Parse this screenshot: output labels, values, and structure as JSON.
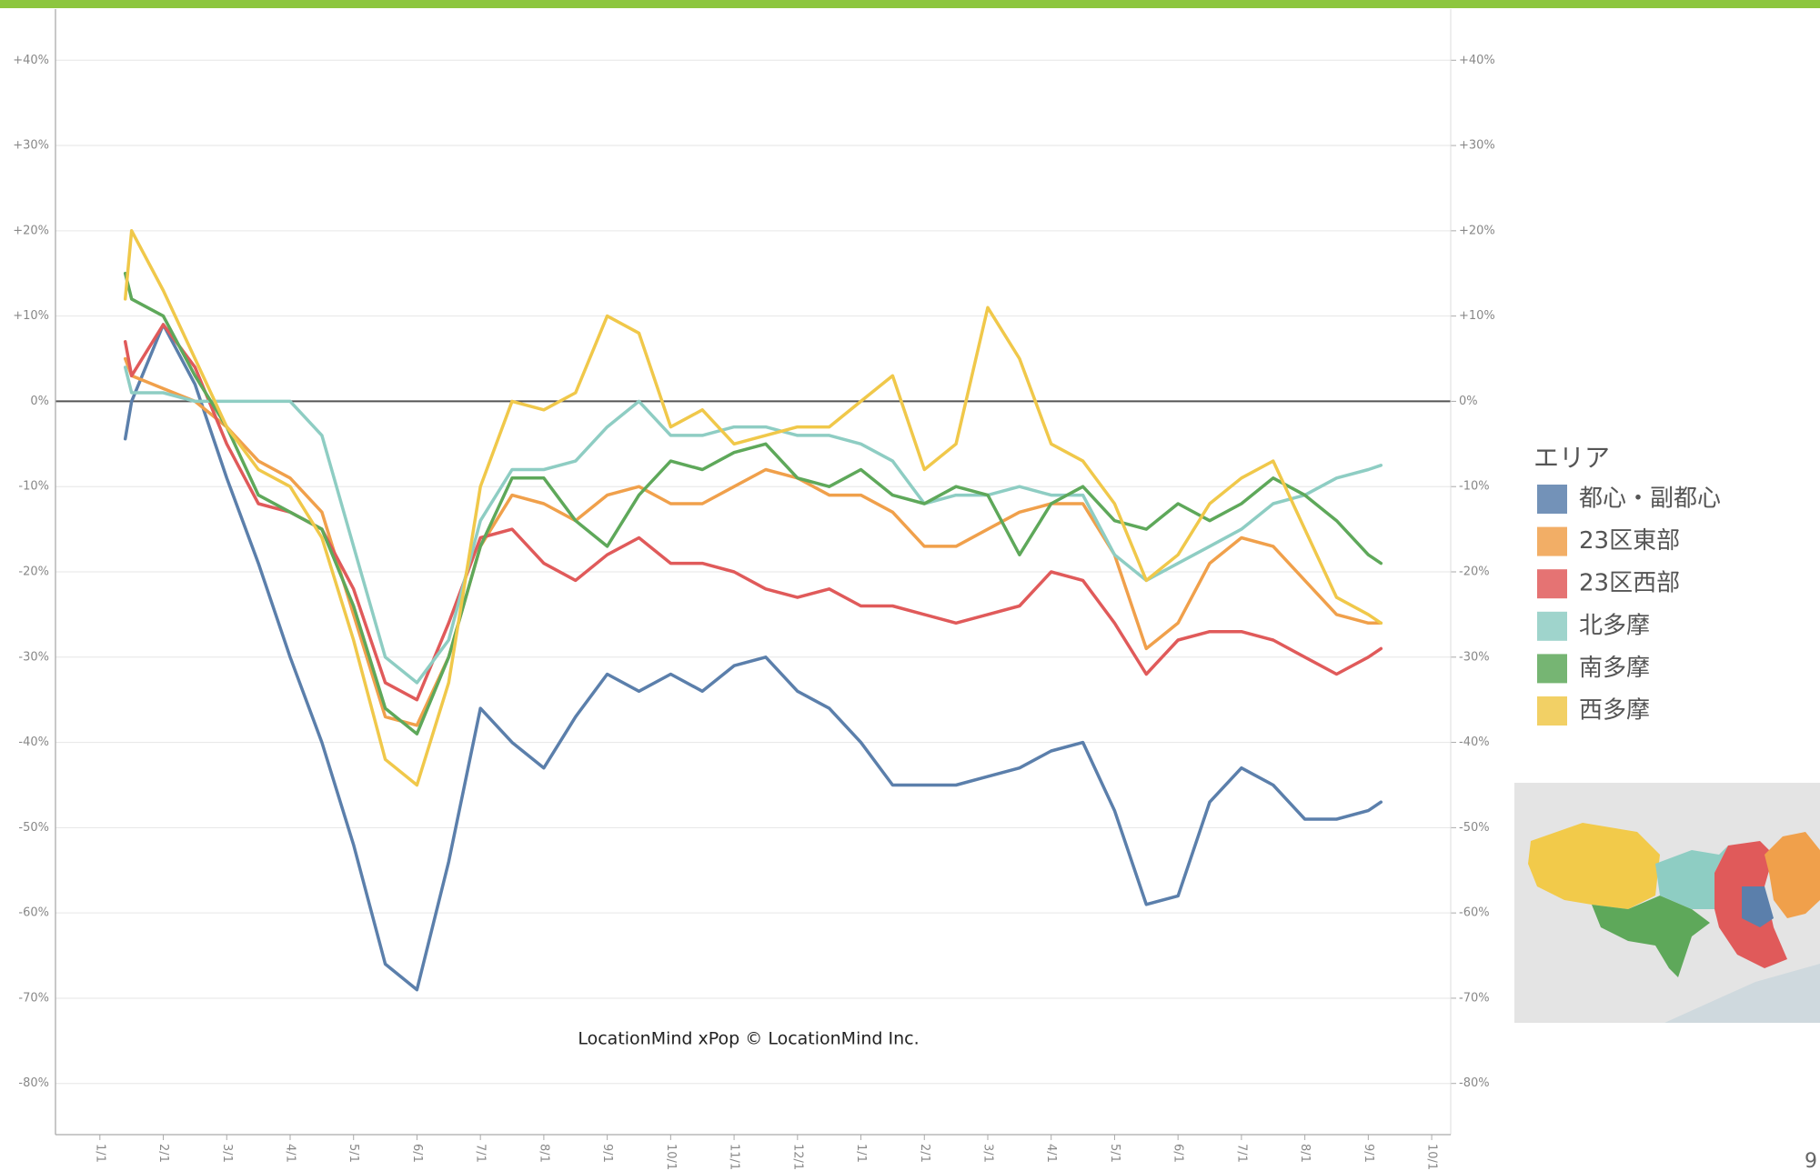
{
  "chart_data": {
    "type": "line",
    "legend_title": "エリア",
    "annotation": "LocationMind xPop © LocationMind Inc.",
    "page_number": "9",
    "x": [
      0.4,
      0.5,
      1,
      1.5,
      2,
      2.5,
      3,
      3.5,
      4,
      4.5,
      5,
      5.5,
      6,
      6.5,
      7,
      7.5,
      8,
      8.5,
      9,
      9.5,
      10,
      10.5,
      11,
      11.5,
      12,
      12.5,
      13,
      13.5,
      14,
      14.5,
      15,
      15.5,
      16,
      16.5,
      17,
      17.5,
      18,
      18.5,
      19,
      19.5,
      20,
      20.2
    ],
    "xlim": [
      -0.7,
      21.3
    ],
    "xticks": [
      {
        "value": 0,
        "label": "1/1"
      },
      {
        "value": 1,
        "label": "2/1"
      },
      {
        "value": 2,
        "label": "3/1"
      },
      {
        "value": 3,
        "label": "4/1"
      },
      {
        "value": 4,
        "label": "5/1"
      },
      {
        "value": 5,
        "label": "6/1"
      },
      {
        "value": 6,
        "label": "7/1"
      },
      {
        "value": 7,
        "label": "8/1"
      },
      {
        "value": 8,
        "label": "9/1"
      },
      {
        "value": 9,
        "label": "10/1"
      },
      {
        "value": 10,
        "label": "11/1"
      },
      {
        "value": 11,
        "label": "12/1"
      },
      {
        "value": 12,
        "label": "1/1"
      },
      {
        "value": 13,
        "label": "2/1"
      },
      {
        "value": 14,
        "label": "3/1"
      },
      {
        "value": 15,
        "label": "4/1"
      },
      {
        "value": 16,
        "label": "5/1"
      },
      {
        "value": 17,
        "label": "6/1"
      },
      {
        "value": 18,
        "label": "7/1"
      },
      {
        "value": 19,
        "label": "8/1"
      },
      {
        "value": 20,
        "label": "9/1"
      },
      {
        "value": 21,
        "label": "10/1"
      }
    ],
    "ylim": [
      -86,
      46
    ],
    "yticks": [
      {
        "value": 40,
        "label": "+40%"
      },
      {
        "value": 30,
        "label": "+30%"
      },
      {
        "value": 20,
        "label": "+20%"
      },
      {
        "value": 10,
        "label": "+10%"
      },
      {
        "value": 0,
        "label": "0%"
      },
      {
        "value": -10,
        "label": "-10%"
      },
      {
        "value": -20,
        "label": "-20%"
      },
      {
        "value": -30,
        "label": "-30%"
      },
      {
        "value": -40,
        "label": "-40%"
      },
      {
        "value": -50,
        "label": "-50%"
      },
      {
        "value": -60,
        "label": "-60%"
      },
      {
        "value": -70,
        "label": "-70%"
      },
      {
        "value": -80,
        "label": "-80%"
      }
    ],
    "grid": true,
    "series": [
      {
        "name": "都心・副都心",
        "color": "#5b7fab",
        "values": [
          -4.4,
          0,
          9,
          2,
          -9,
          -19,
          -30,
          -40,
          -52,
          -66,
          -69,
          -54,
          -36,
          -40,
          -43,
          -37,
          -32,
          -34,
          -32,
          -34,
          -31,
          -30,
          -34,
          -36,
          -40,
          -45,
          -45,
          -45,
          -44,
          -43,
          -41,
          -40,
          -48,
          -59,
          -58,
          -47,
          -43,
          -45,
          -49,
          -49,
          -48,
          -47
        ]
      },
      {
        "name": "23区東部",
        "color": "#f0a04b",
        "values": [
          5,
          3,
          1.5,
          0,
          -3,
          -7,
          -9,
          -13,
          -25,
          -37,
          -38,
          -30,
          -17,
          -11,
          -12,
          -14,
          -11,
          -10,
          -12,
          -12,
          -10,
          -8,
          -9,
          -11,
          -11,
          -13,
          -17,
          -17,
          -15,
          -13,
          -12,
          -12,
          -18,
          -29,
          -26,
          -19,
          -16,
          -17,
          -21,
          -25,
          -26,
          -26
        ]
      },
      {
        "name": "23区西部",
        "color": "#e05a5a",
        "values": [
          7,
          3,
          9,
          4,
          -5,
          -12,
          -13,
          -15,
          -22,
          -33,
          -35,
          -26,
          -16,
          -15,
          -19,
          -21,
          -18,
          -16,
          -19,
          -19,
          -20,
          -22,
          -23,
          -22,
          -24,
          -24,
          -25,
          -26,
          -25,
          -24,
          -20,
          -21,
          -26,
          -32,
          -28,
          -27,
          -27,
          -28,
          -30,
          -32,
          -30,
          -29
        ]
      },
      {
        "name": "北多摩",
        "color": "#8ecdc3",
        "values": [
          4,
          1,
          1,
          0,
          0,
          0,
          0,
          -4,
          -17,
          -30,
          -33,
          -28,
          -14,
          -8,
          -8,
          -7,
          -3,
          0,
          -4,
          -4,
          -3,
          -3,
          -4,
          -4,
          -5,
          -7,
          -12,
          -11,
          -11,
          -10,
          -11,
          -11,
          -18,
          -21,
          -19,
          -17,
          -15,
          -12,
          -11,
          -9,
          -8,
          -7.5
        ]
      },
      {
        "name": "南多摩",
        "color": "#5ea85a",
        "values": [
          15,
          12,
          10,
          3,
          -3,
          -11,
          -13,
          -15,
          -24,
          -36,
          -39,
          -30,
          -17,
          -9,
          -9,
          -14,
          -17,
          -11,
          -7,
          -8,
          -6,
          -5,
          -9,
          -10,
          -8,
          -11,
          -12,
          -10,
          -11,
          -18,
          -12,
          -10,
          -14,
          -15,
          -12,
          -14,
          -12,
          -9,
          -11,
          -14,
          -18,
          -19
        ]
      },
      {
        "name": "西多摩",
        "color": "#f0c84a",
        "values": [
          12,
          20,
          13,
          5,
          -3,
          -8,
          -10,
          -16,
          -28,
          -42,
          -45,
          -33,
          -10,
          0,
          -1,
          1,
          10,
          8,
          -3,
          -1,
          -5,
          -4,
          -3,
          -3,
          0,
          3,
          -8,
          -5,
          11,
          5,
          -5,
          -7,
          -12,
          -21,
          -18,
          -12,
          -9,
          -7,
          -15,
          -23,
          -25,
          -26
        ]
      }
    ]
  }
}
